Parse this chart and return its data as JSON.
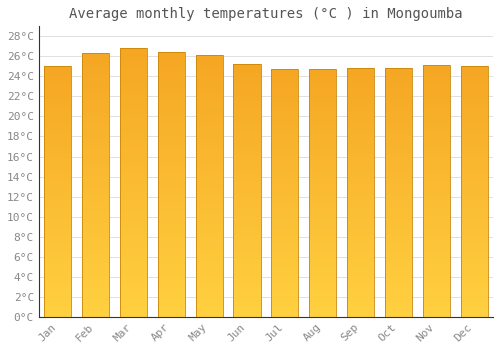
{
  "title": "Average monthly temperatures (°C ) in Mongoumba",
  "months": [
    "Jan",
    "Feb",
    "Mar",
    "Apr",
    "May",
    "Jun",
    "Jul",
    "Aug",
    "Sep",
    "Oct",
    "Nov",
    "Dec"
  ],
  "values": [
    25.0,
    26.3,
    26.8,
    26.4,
    26.1,
    25.2,
    24.7,
    24.7,
    24.8,
    24.8,
    25.1,
    25.0
  ],
  "bar_color_top": "#F5A623",
  "bar_color_bottom": "#FFD040",
  "bar_edge_color": "#C8860A",
  "ylim": [
    0,
    29
  ],
  "yticks": [
    0,
    2,
    4,
    6,
    8,
    10,
    12,
    14,
    16,
    18,
    20,
    22,
    24,
    26,
    28
  ],
  "ytick_labels": [
    "0°C",
    "2°C",
    "4°C",
    "6°C",
    "8°C",
    "10°C",
    "12°C",
    "14°C",
    "16°C",
    "18°C",
    "20°C",
    "22°C",
    "24°C",
    "26°C",
    "28°C"
  ],
  "title_fontsize": 10,
  "tick_fontsize": 8,
  "background_color": "#ffffff",
  "grid_color": "#e0e0e0"
}
